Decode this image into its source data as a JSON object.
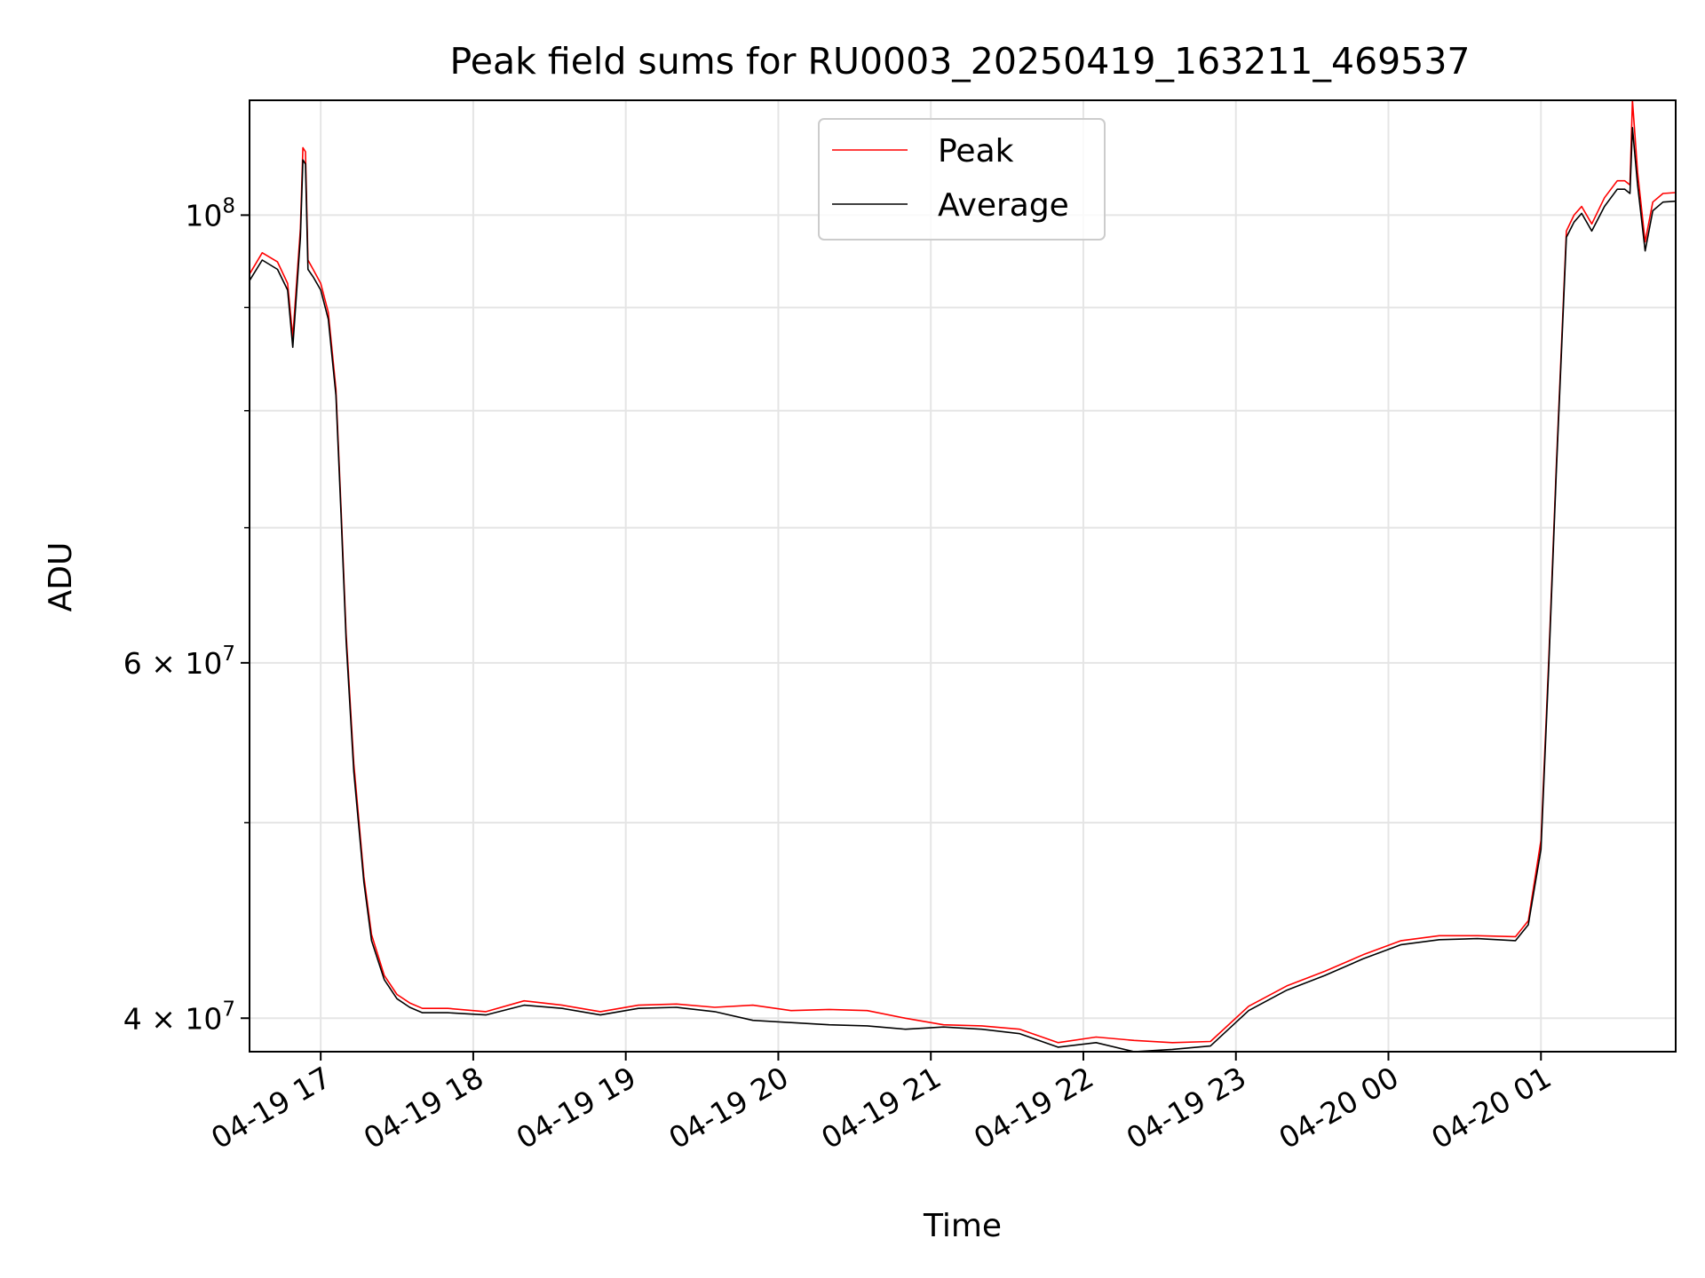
{
  "chart_data": {
    "type": "line",
    "title": "Peak field sums for RU0003_20250419_163211_469537",
    "xlabel": "Time",
    "ylabel": "ADU",
    "yscale": "log",
    "ylim": [
      38500000,
      114000000
    ],
    "xlim": [
      "2025-04-19 16:32",
      "2025-04-20 01:53"
    ],
    "grid": true,
    "legend_position": "top-center",
    "x_ticks": [
      {
        "t": "2025-04-19 17:00",
        "label": "04-19 17"
      },
      {
        "t": "2025-04-19 18:00",
        "label": "04-19 18"
      },
      {
        "t": "2025-04-19 19:00",
        "label": "04-19 19"
      },
      {
        "t": "2025-04-19 20:00",
        "label": "04-19 20"
      },
      {
        "t": "2025-04-19 21:00",
        "label": "04-19 21"
      },
      {
        "t": "2025-04-19 22:00",
        "label": "04-19 22"
      },
      {
        "t": "2025-04-19 23:00",
        "label": "04-19 23"
      },
      {
        "t": "2025-04-20 00:00",
        "label": "04-20 00"
      },
      {
        "t": "2025-04-20 01:00",
        "label": "04-20 01"
      }
    ],
    "y_ticks": [
      {
        "v": 40000000,
        "base": "4",
        "exp": "7"
      },
      {
        "v": 60000000,
        "base": "6",
        "exp": "7"
      },
      {
        "v": 100000000,
        "base": "",
        "exp": "8"
      }
    ],
    "y_minor_ticks": [
      50000000,
      70000000,
      80000000,
      90000000
    ],
    "x": [
      "2025-04-19 16:32",
      "2025-04-19 16:37",
      "2025-04-19 16:43",
      "2025-04-19 16:47",
      "2025-04-19 16:49",
      "2025-04-19 16:52",
      "2025-04-19 16:53",
      "2025-04-19 16:54",
      "2025-04-19 16:55",
      "2025-04-19 16:57",
      "2025-04-19 17:00",
      "2025-04-19 17:03",
      "2025-04-19 17:06",
      "2025-04-19 17:08",
      "2025-04-19 17:10",
      "2025-04-19 17:13",
      "2025-04-19 17:17",
      "2025-04-19 17:20",
      "2025-04-19 17:25",
      "2025-04-19 17:30",
      "2025-04-19 17:35",
      "2025-04-19 17:40",
      "2025-04-19 17:50",
      "2025-04-19 18:05",
      "2025-04-19 18:20",
      "2025-04-19 18:35",
      "2025-04-19 18:50",
      "2025-04-19 19:05",
      "2025-04-19 19:20",
      "2025-04-19 19:35",
      "2025-04-19 19:50",
      "2025-04-19 20:05",
      "2025-04-19 20:20",
      "2025-04-19 20:35",
      "2025-04-19 20:50",
      "2025-04-19 21:05",
      "2025-04-19 21:20",
      "2025-04-19 21:35",
      "2025-04-19 21:50",
      "2025-04-19 22:05",
      "2025-04-19 22:20",
      "2025-04-19 22:35",
      "2025-04-19 22:50",
      "2025-04-19 23:05",
      "2025-04-19 23:20",
      "2025-04-19 23:35",
      "2025-04-19 23:50",
      "2025-04-20 00:05",
      "2025-04-20 00:20",
      "2025-04-20 00:35",
      "2025-04-20 00:50",
      "2025-04-20 00:55",
      "2025-04-20 01:00",
      "2025-04-20 01:03",
      "2025-04-20 01:06",
      "2025-04-20 01:10",
      "2025-04-20 01:13",
      "2025-04-20 01:16",
      "2025-04-20 01:20",
      "2025-04-20 01:25",
      "2025-04-20 01:30",
      "2025-04-20 01:33",
      "2025-04-20 01:35",
      "2025-04-20 01:36",
      "2025-04-20 01:38",
      "2025-04-20 01:41",
      "2025-04-20 01:44",
      "2025-04-20 01:48",
      "2025-04-20 01:53"
    ],
    "series": [
      {
        "name": "Peak",
        "color": "#ff0000",
        "values": [
          93500000,
          95800000,
          94800000,
          92500000,
          87000000,
          98500000,
          108000000,
          107500000,
          95000000,
          94000000,
          92500000,
          89500000,
          82000000,
          71500000,
          62000000,
          53500000,
          47000000,
          44000000,
          42000000,
          41100000,
          40700000,
          40450000,
          40450000,
          40300000,
          40800000,
          40600000,
          40300000,
          40600000,
          40650000,
          40500000,
          40600000,
          40350000,
          40400000,
          40350000,
          40000000,
          39700000,
          39650000,
          39500000,
          38900000,
          39150000,
          39000000,
          38900000,
          38950000,
          40550000,
          41500000,
          42200000,
          43000000,
          43700000,
          43950000,
          43950000,
          43900000,
          44700000,
          49000000,
          60000000,
          75000000,
          98200000,
          100000000,
          101000000,
          99000000,
          102000000,
          104000000,
          104000000,
          103500000,
          114000000,
          105000000,
          97000000,
          101500000,
          102500000,
          102600000
        ]
      },
      {
        "name": "Average",
        "color": "#000000",
        "values": [
          92800000,
          95000000,
          94000000,
          91800000,
          86000000,
          97500000,
          106500000,
          106000000,
          94000000,
          93200000,
          91800000,
          88800000,
          81400000,
          71000000,
          61500000,
          53000000,
          46700000,
          43700000,
          41800000,
          40900000,
          40500000,
          40250000,
          40250000,
          40150000,
          40600000,
          40450000,
          40150000,
          40450000,
          40500000,
          40300000,
          39900000,
          39800000,
          39700000,
          39650000,
          39500000,
          39600000,
          39500000,
          39300000,
          38700000,
          38900000,
          38500000,
          38600000,
          38750000,
          40350000,
          41300000,
          42000000,
          42800000,
          43500000,
          43750000,
          43800000,
          43700000,
          44500000,
          48500000,
          59500000,
          74500000,
          97500000,
          99200000,
          100200000,
          98200000,
          101000000,
          103000000,
          103000000,
          102500000,
          110500000,
          103500000,
          96000000,
          100500000,
          101500000,
          101600000
        ]
      }
    ]
  }
}
